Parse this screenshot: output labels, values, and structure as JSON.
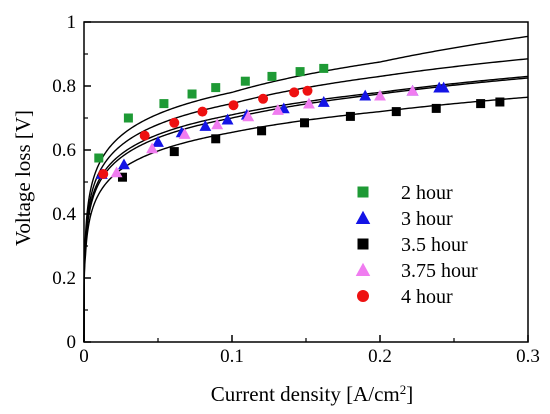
{
  "chart_data": {
    "type": "scatter",
    "title": "",
    "xlabel": "Current density [A/cm",
    "xlabel_sup": "2",
    "xlabel_tail": "]",
    "ylabel": "Voltage loss [V]",
    "xlim": [
      0,
      0.3
    ],
    "ylim": [
      0,
      1
    ],
    "xticks": [
      "0",
      "0.1",
      "0.2",
      "0.3"
    ],
    "yticks": [
      "0",
      "0.2",
      "0.4",
      "0.6",
      "0.8",
      "1"
    ],
    "grid": false,
    "legend_position": "bottom-right",
    "series": [
      {
        "name": "2 hour",
        "marker": "square",
        "color": "#1e9a35",
        "x": [
          0.01,
          0.03,
          0.054,
          0.073,
          0.089,
          0.109,
          0.127,
          0.146,
          0.162
        ],
        "y": [
          0.575,
          0.7,
          0.745,
          0.775,
          0.795,
          0.815,
          0.83,
          0.845,
          0.855
        ],
        "fit_y": [
          0.33,
          0.78,
          0.875,
          0.955
        ]
      },
      {
        "name": "3 hour",
        "marker": "triangle",
        "color": "#1414e6",
        "x": [
          0.012,
          0.027,
          0.05,
          0.066,
          0.082,
          0.097,
          0.11,
          0.135,
          0.162,
          0.19,
          0.222,
          0.24,
          0.243
        ],
        "y": [
          0.525,
          0.555,
          0.625,
          0.655,
          0.675,
          0.695,
          0.71,
          0.73,
          0.75,
          0.77,
          0.785,
          0.795,
          0.795
        ],
        "fit_y": [
          0.3,
          0.71,
          0.78,
          0.83
        ]
      },
      {
        "name": "3.5 hour",
        "marker": "square",
        "color": "#000000",
        "x": [
          0.026,
          0.061,
          0.089,
          0.12,
          0.149,
          0.18,
          0.211,
          0.238,
          0.268,
          0.281
        ],
        "y": [
          0.515,
          0.595,
          0.635,
          0.66,
          0.685,
          0.705,
          0.72,
          0.73,
          0.745,
          0.75
        ],
        "fit_y": [
          0.27,
          0.655,
          0.72,
          0.765
        ]
      },
      {
        "name": "3.75 hour",
        "marker": "triangle",
        "color": "#f07cf0",
        "x": [
          0.022,
          0.046,
          0.068,
          0.09,
          0.111,
          0.131,
          0.152,
          0.2,
          0.222
        ],
        "y": [
          0.53,
          0.605,
          0.65,
          0.68,
          0.705,
          0.725,
          0.745,
          0.77,
          0.785
        ],
        "fit_y": [
          0.29,
          0.7,
          0.775,
          0.825
        ]
      },
      {
        "name": "4 hour",
        "marker": "circle",
        "color": "#ee1111",
        "x": [
          0.013,
          0.041,
          0.061,
          0.08,
          0.101,
          0.121,
          0.142,
          0.151
        ],
        "y": [
          0.525,
          0.645,
          0.685,
          0.72,
          0.74,
          0.76,
          0.78,
          0.785
        ],
        "fit_y": [
          0.31,
          0.745,
          0.83,
          0.885
        ]
      }
    ]
  }
}
